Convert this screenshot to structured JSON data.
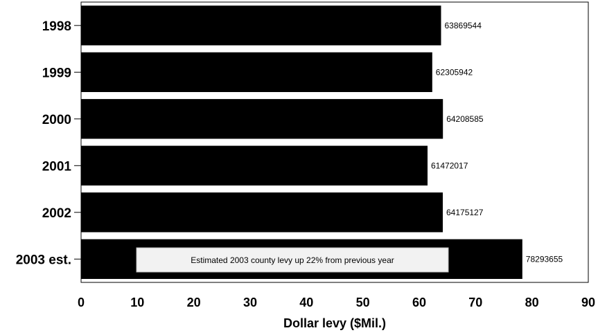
{
  "chart_data": {
    "type": "bar",
    "orientation": "horizontal",
    "categories": [
      "1998",
      "1999",
      "2000",
      "2001",
      "2002",
      "2003 est."
    ],
    "values": [
      63.869544,
      62.305942,
      64.208585,
      61.472017,
      64.175127,
      78.293655
    ],
    "data_labels": [
      "63869544",
      "62305942",
      "64208585",
      "61472017",
      "64175127",
      "78293655"
    ],
    "xlabel": "Dollar levy ($Mil.)",
    "xlim": [
      0,
      90
    ],
    "xticks": [
      "0",
      "10",
      "20",
      "30",
      "40",
      "50",
      "60",
      "70",
      "80",
      "90"
    ],
    "bar_color": "#000000",
    "grid": false,
    "annotation": "Estimated 2003 county levy up 22% from previous year"
  }
}
